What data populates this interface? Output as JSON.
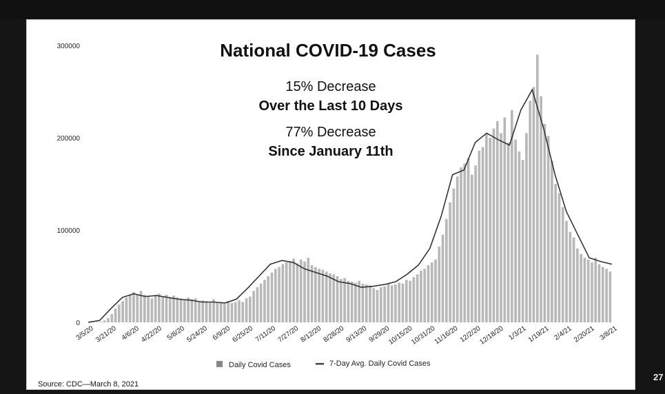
{
  "slide": {
    "source": "Source: CDC—March 8, 2021",
    "page_number": "27",
    "notes": [
      {
        "text": "15% Decrease",
        "weight": "light"
      },
      {
        "text": "Over the Last 10 Days",
        "weight": "bold"
      },
      {
        "text": "77% Decrease",
        "weight": "light"
      },
      {
        "text": "Since January 11th",
        "weight": "bold"
      }
    ]
  },
  "chart_data": {
    "type": "bar",
    "title": "National COVID-19 Cases",
    "ylim": [
      0,
      300000
    ],
    "yticks": [
      0,
      100000,
      200000,
      300000
    ],
    "x_tick_labels": [
      "3/5/20",
      "3/21/20",
      "4/6/20",
      "4/22/20",
      "5/8/20",
      "5/24/20",
      "6/9/20",
      "6/25/20",
      "7/11/20",
      "7/27/20",
      "8/12/20",
      "8/28/20",
      "9/13/20",
      "9/29/20",
      "10/15/20",
      "10/31/20",
      "11/16/20",
      "12/2/20",
      "12/18/20",
      "1/3/21",
      "1/19/21",
      "2/4/21",
      "2/20/21",
      "3/8/21"
    ],
    "colors": {
      "bars": "#b8b8b8",
      "line": "#333333"
    },
    "legend": {
      "position": "bottom",
      "bar_label": "Daily Covid Cases",
      "line_label": "7-Day Avg. Daily Covid Cases"
    },
    "series": [
      {
        "name": "7-Day Avg. Daily Covid Cases",
        "type": "line",
        "x": [
          "3/5/20",
          "3/13/20",
          "3/21/20",
          "3/29/20",
          "4/6/20",
          "4/14/20",
          "4/22/20",
          "4/30/20",
          "5/8/20",
          "5/16/20",
          "5/24/20",
          "6/1/20",
          "6/9/20",
          "6/17/20",
          "6/25/20",
          "7/3/20",
          "7/11/20",
          "7/19/20",
          "7/27/20",
          "8/4/20",
          "8/12/20",
          "8/20/20",
          "8/28/20",
          "9/5/20",
          "9/13/20",
          "9/21/20",
          "9/29/20",
          "10/7/20",
          "10/15/20",
          "10/23/20",
          "10/31/20",
          "11/8/20",
          "11/16/20",
          "11/24/20",
          "12/2/20",
          "12/10/20",
          "12/18/20",
          "12/26/20",
          "1/3/21",
          "1/11/21",
          "1/19/21",
          "1/27/21",
          "2/4/21",
          "2/12/21",
          "2/20/21",
          "2/28/21",
          "3/8/21"
        ],
        "values": [
          100,
          2000,
          15000,
          27000,
          31000,
          28000,
          29000,
          27000,
          25000,
          24000,
          22000,
          22000,
          21000,
          25000,
          37000,
          50000,
          63000,
          67000,
          65000,
          58000,
          54000,
          50000,
          44000,
          42000,
          38000,
          39000,
          41000,
          44000,
          52000,
          62000,
          80000,
          115000,
          160000,
          165000,
          195000,
          205000,
          198000,
          192000,
          230000,
          252000,
          210000,
          160000,
          120000,
          95000,
          70000,
          66000,
          63000
        ]
      },
      {
        "name": "Daily Covid Cases",
        "type": "bar",
        "values": [
          0,
          100,
          300,
          800,
          2000,
          4500,
          9000,
          15000,
          19000,
          23000,
          27000,
          30000,
          33000,
          30000,
          34000,
          30000,
          28000,
          26000,
          29000,
          31000,
          28000,
          30000,
          27000,
          29000,
          27000,
          26000,
          24000,
          27000,
          25000,
          26000,
          22000,
          24000,
          23000,
          22000,
          25000,
          21000,
          22000,
          20000,
          23000,
          21000,
          22000,
          24000,
          22000,
          26000,
          28000,
          34000,
          38000,
          42000,
          46000,
          50000,
          54000,
          58000,
          60000,
          63000,
          65000,
          66000,
          69000,
          64000,
          68000,
          66000,
          70000,
          62000,
          60000,
          58000,
          57000,
          55000,
          53000,
          52000,
          50000,
          47000,
          48000,
          45000,
          44000,
          43000,
          45000,
          42000,
          41000,
          40000,
          37000,
          35000,
          38000,
          39000,
          42000,
          40000,
          41000,
          43000,
          42000,
          46000,
          45000,
          49000,
          52000,
          56000,
          58000,
          62000,
          65000,
          68000,
          82000,
          95000,
          112000,
          130000,
          145000,
          158000,
          168000,
          172000,
          178000,
          160000,
          170000,
          186000,
          190000,
          205000,
          200000,
          210000,
          218000,
          205000,
          222000,
          195000,
          230000,
          198000,
          185000,
          176000,
          205000,
          240000,
          255000,
          290000,
          245000,
          215000,
          202000,
          175000,
          150000,
          140000,
          125000,
          110000,
          98000,
          92000,
          80000,
          74000,
          70000,
          68000,
          65000,
          70000,
          63000,
          60000,
          58000,
          55000
        ]
      }
    ]
  }
}
